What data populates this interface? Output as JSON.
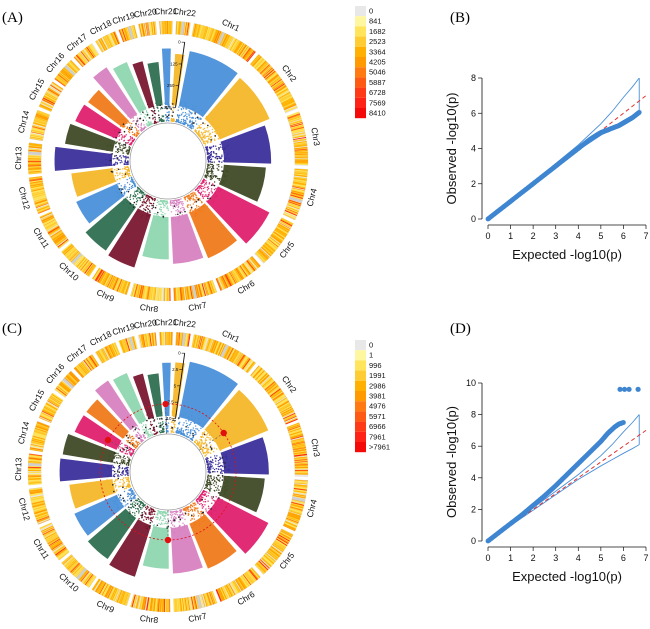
{
  "figure": {
    "panel_labels": [
      "(A)",
      "(B)",
      "(C)",
      "(D)"
    ]
  },
  "chromosomes": [
    "Chr1",
    "Chr2",
    "Chr3",
    "Chr4",
    "Chr5",
    "Chr6",
    "Chr7",
    "Chr8",
    "Chr9",
    "Chr10",
    "Chr11",
    "Chr12",
    "Chr13",
    "Chr14",
    "Chr15",
    "Chr16",
    "Chr17",
    "Chr18",
    "Chr19",
    "Chr20",
    "Chr21",
    "Chr22"
  ],
  "chromosome_colors": [
    "#4a90d9",
    "#f6b72a",
    "#3a2f9a",
    "#3f4a26",
    "#e0206e",
    "#f07a1a",
    "#d782c0",
    "#8fd6b0",
    "#7a1830",
    "#2f6f50",
    "#4a90d9",
    "#f6b72a",
    "#3a2f9a",
    "#3f4a26",
    "#e0206e",
    "#f07a1a",
    "#d782c0",
    "#8fd6b0",
    "#7a1830",
    "#2f6f50",
    "#4a90d9",
    "#f6b72a"
  ],
  "density_colors": [
    "#e8e8e8",
    "#fff6a0",
    "#ffe45c",
    "#ffcc33",
    "#ffb000",
    "#ff9a00",
    "#ff7a10",
    "#ff5a14",
    "#ff3a16",
    "#ff2216",
    "#f50a0a"
  ],
  "legend_a": [
    "0",
    "841",
    "1682",
    "2523",
    "3364",
    "4205",
    "5046",
    "5887",
    "6728",
    "7569",
    "8410"
  ],
  "legend_c": [
    "0",
    "1",
    "996",
    "1991",
    "2986",
    "3981",
    "4976",
    "5971",
    "6966",
    "7961",
    ">7961"
  ],
  "circle_a_ticks": [
    "0",
    "125",
    "250",
    "375"
  ],
  "circle_c_ticks": [
    "0",
    "2.5",
    "5",
    "7.5",
    "10"
  ],
  "chart_data": [
    {
      "type": "scatter",
      "panel": "B",
      "title": "",
      "xlabel": "Expected  -log10(p)",
      "ylabel": "Observed  -log10(p)",
      "xlim": [
        0,
        7
      ],
      "ylim": [
        0,
        8
      ],
      "x_ticks": [
        "0",
        "1",
        "2",
        "3",
        "4",
        "5",
        "6",
        "7"
      ],
      "y_ticks": [
        "0",
        "2",
        "4",
        "6",
        "8"
      ],
      "series": [
        {
          "name": "observed",
          "x": [
            0,
            0.5,
            1,
            1.5,
            2,
            2.5,
            3,
            3.5,
            4,
            4.5,
            4.8,
            5.0,
            5.2,
            5.4,
            5.6,
            5.8,
            6.0,
            6.2,
            6.4,
            6.7
          ],
          "y": [
            0,
            0.5,
            1.0,
            1.5,
            2.0,
            2.5,
            3.0,
            3.5,
            4.0,
            4.5,
            4.75,
            4.9,
            5.0,
            5.1,
            5.2,
            5.3,
            5.45,
            5.6,
            5.75,
            6.05
          ]
        },
        {
          "name": "expected",
          "x": [
            0,
            7
          ],
          "y": [
            0,
            7
          ]
        },
        {
          "name": "ci_upper",
          "x": [
            0,
            4,
            5,
            5.5,
            6,
            6.4,
            6.7
          ],
          "y": [
            0,
            4.2,
            5.4,
            6.1,
            6.9,
            7.5,
            8.0
          ]
        },
        {
          "name": "ci_lower",
          "x": [
            0,
            4,
            5,
            5.5,
            6,
            6.4,
            6.7
          ],
          "y": [
            0,
            3.9,
            4.75,
            5.15,
            5.55,
            5.85,
            6.1
          ]
        }
      ]
    },
    {
      "type": "scatter",
      "panel": "D",
      "title": "",
      "xlabel": "Expected  -log10(p)",
      "ylabel": "Observed  -log10(p)",
      "xlim": [
        0,
        7
      ],
      "ylim": [
        0,
        10
      ],
      "x_ticks": [
        "0",
        "1",
        "2",
        "3",
        "4",
        "5",
        "6",
        "7"
      ],
      "y_ticks": [
        "0",
        "2",
        "4",
        "6",
        "8",
        "10"
      ],
      "series": [
        {
          "name": "observed",
          "x": [
            0,
            0.5,
            1,
            1.5,
            2,
            2.5,
            3,
            3.5,
            4,
            4.5,
            5.0,
            5.3,
            5.6,
            5.8,
            6.0
          ],
          "y": [
            0,
            0.55,
            1.1,
            1.65,
            2.25,
            2.85,
            3.5,
            4.2,
            4.9,
            5.6,
            6.3,
            6.8,
            7.2,
            7.4,
            7.5
          ]
        },
        {
          "name": "outliers",
          "x": [
            5.85,
            6.05,
            6.25,
            6.65
          ],
          "y": [
            9.6,
            9.6,
            9.6,
            9.6
          ]
        },
        {
          "name": "expected",
          "x": [
            0,
            7
          ],
          "y": [
            0,
            7
          ]
        },
        {
          "name": "ci_upper",
          "x": [
            0,
            4,
            5,
            5.5,
            6,
            6.4,
            6.7
          ],
          "y": [
            0,
            4.2,
            5.4,
            6.1,
            6.9,
            7.5,
            8.0
          ]
        },
        {
          "name": "ci_lower",
          "x": [
            0,
            4,
            5,
            5.5,
            6,
            6.4,
            6.7
          ],
          "y": [
            0,
            3.9,
            4.75,
            5.15,
            5.55,
            5.85,
            6.1
          ]
        }
      ]
    }
  ]
}
